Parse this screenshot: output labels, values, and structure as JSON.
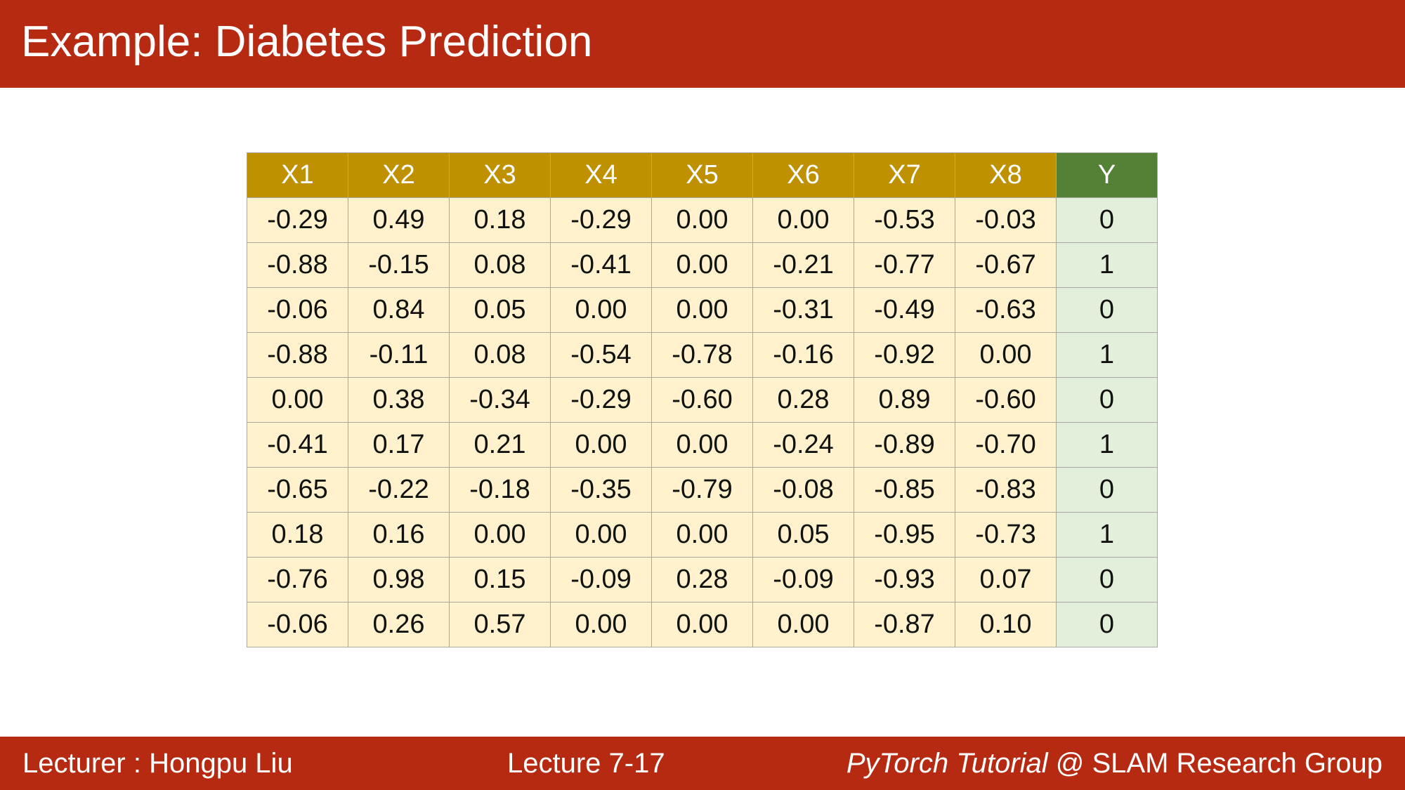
{
  "slide": {
    "title": "Example: Diabetes Prediction",
    "colors": {
      "title_bar": "#b72a12",
      "feature_header": "#bf9000",
      "label_header": "#538135",
      "feature_cell": "#fff2cc",
      "label_cell": "#e2efda"
    }
  },
  "table": {
    "headers": [
      "X1",
      "X2",
      "X3",
      "X4",
      "X5",
      "X6",
      "X7",
      "X8",
      "Y"
    ],
    "rows": [
      [
        "-0.29",
        "0.49",
        "0.18",
        "-0.29",
        "0.00",
        "0.00",
        "-0.53",
        "-0.03",
        "0"
      ],
      [
        "-0.88",
        "-0.15",
        "0.08",
        "-0.41",
        "0.00",
        "-0.21",
        "-0.77",
        "-0.67",
        "1"
      ],
      [
        "-0.06",
        "0.84",
        "0.05",
        "0.00",
        "0.00",
        "-0.31",
        "-0.49",
        "-0.63",
        "0"
      ],
      [
        "-0.88",
        "-0.11",
        "0.08",
        "-0.54",
        "-0.78",
        "-0.16",
        "-0.92",
        "0.00",
        "1"
      ],
      [
        "0.00",
        "0.38",
        "-0.34",
        "-0.29",
        "-0.60",
        "0.28",
        "0.89",
        "-0.60",
        "0"
      ],
      [
        "-0.41",
        "0.17",
        "0.21",
        "0.00",
        "0.00",
        "-0.24",
        "-0.89",
        "-0.70",
        "1"
      ],
      [
        "-0.65",
        "-0.22",
        "-0.18",
        "-0.35",
        "-0.79",
        "-0.08",
        "-0.85",
        "-0.83",
        "0"
      ],
      [
        "0.18",
        "0.16",
        "0.00",
        "0.00",
        "0.00",
        "0.05",
        "-0.95",
        "-0.73",
        "1"
      ],
      [
        "-0.76",
        "0.98",
        "0.15",
        "-0.09",
        "0.28",
        "-0.09",
        "-0.93",
        "0.07",
        "0"
      ],
      [
        "-0.06",
        "0.26",
        "0.57",
        "0.00",
        "0.00",
        "0.00",
        "-0.87",
        "0.10",
        "0"
      ]
    ]
  },
  "footer": {
    "lecturer": "Lecturer : Hongpu Liu",
    "lecture": "Lecture 7-17",
    "course_italic": "PyTorch Tutorial",
    "course_rest": " @ SLAM Research Group"
  }
}
